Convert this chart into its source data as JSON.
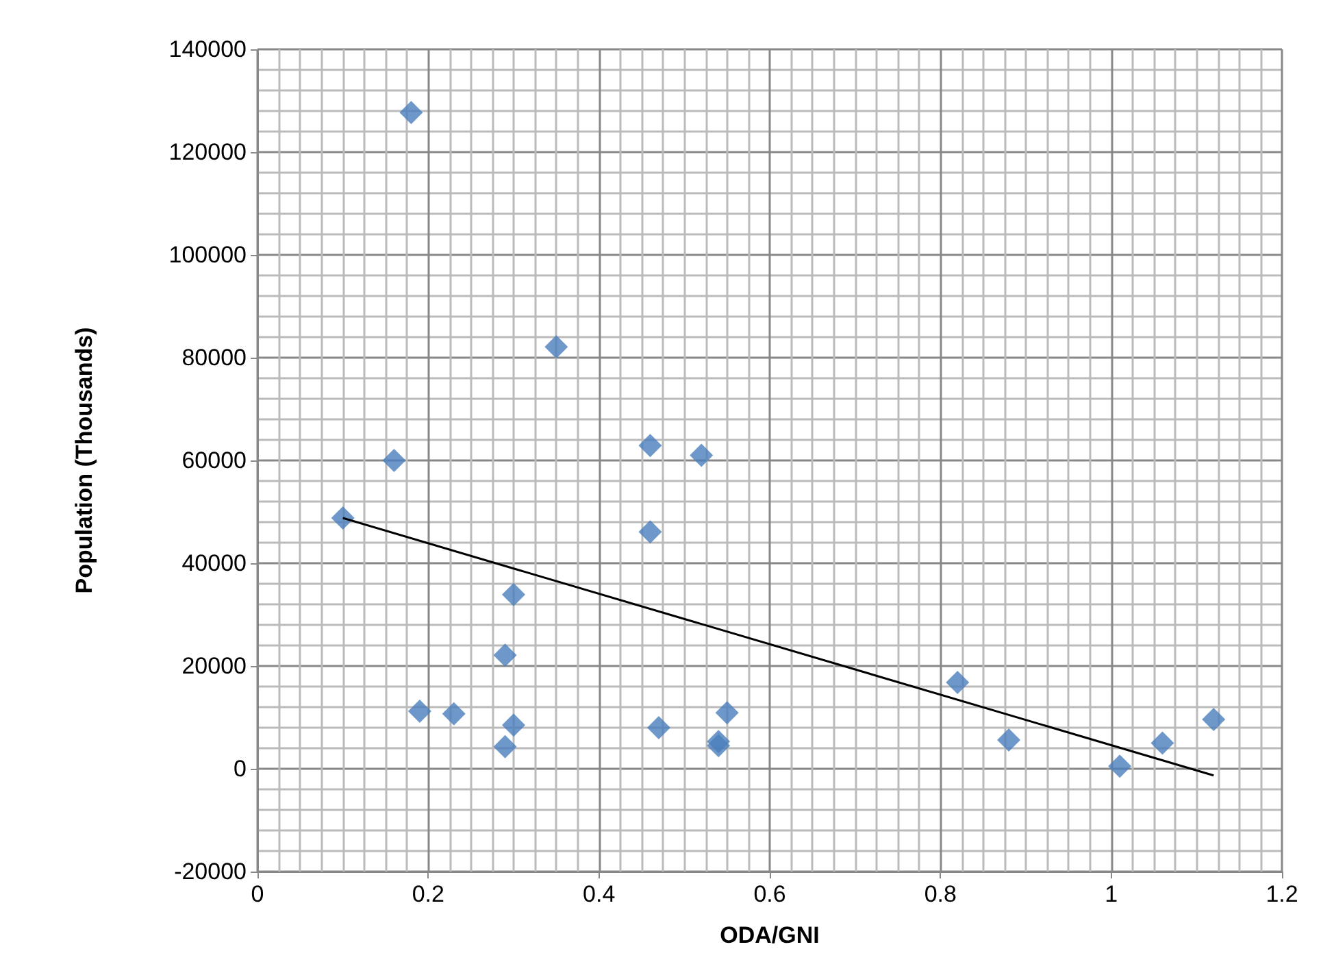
{
  "chart_data": {
    "type": "scatter",
    "xlabel": "ODA/GNI",
    "ylabel": "Population (Thousands)",
    "xlim": [
      0,
      1.2
    ],
    "xticks": [
      0,
      0.2,
      0.4,
      0.6,
      0.8,
      1,
      1.2
    ],
    "ylim": [
      -20000,
      140000
    ],
    "yticks": [
      -20000,
      0,
      20000,
      40000,
      60000,
      80000,
      100000,
      120000,
      140000
    ],
    "grid": true,
    "marker": "diamond",
    "series": [
      {
        "color": "#4a7ebb",
        "x": [
          0.1,
          0.18,
          0.16,
          0.19,
          0.23,
          0.29,
          0.29,
          0.3,
          0.3,
          0.35,
          0.46,
          0.46,
          0.47,
          0.52,
          0.54,
          0.54,
          0.55,
          0.82,
          0.88,
          1.01,
          1.06,
          1.12
        ],
        "values": [
          48800,
          127700,
          60000,
          11200,
          10700,
          22100,
          4300,
          33900,
          8500,
          82100,
          62900,
          46100,
          8000,
          61000,
          5300,
          4500,
          10900,
          16800,
          5600,
          500,
          5000,
          9600
        ]
      },
      {
        "type": "line",
        "color": "#000000",
        "marker": "none",
        "line_style": "solid",
        "x": [
          0.1,
          1.12
        ],
        "values": [
          48800,
          -1300
        ]
      }
    ]
  }
}
